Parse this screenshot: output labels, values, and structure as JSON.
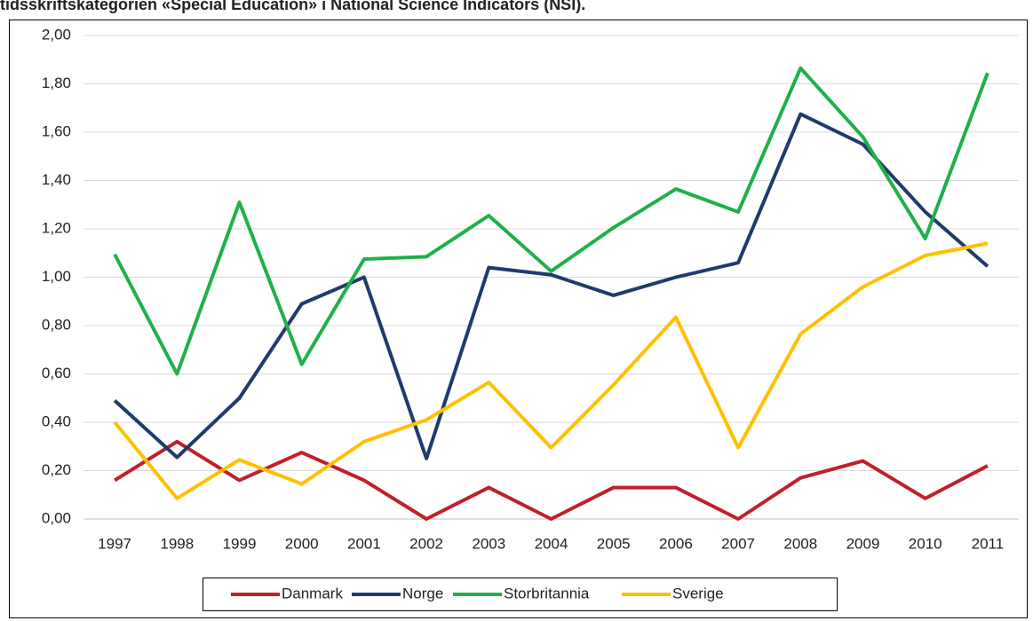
{
  "chart_data": {
    "type": "line",
    "title": "tidsskriftskategorien «Special Education» i National Science Indicators (NSI).",
    "categories": [
      "1997",
      "1998",
      "1999",
      "2000",
      "2001",
      "2002",
      "2003",
      "2004",
      "2005",
      "2006",
      "2007",
      "2008",
      "2009",
      "2010",
      "2011"
    ],
    "series": [
      {
        "name": "Danmark",
        "color": "#c0202a",
        "values": [
          0.16,
          0.32,
          0.16,
          0.275,
          0.16,
          0.0,
          0.13,
          0.0,
          0.13,
          0.13,
          0.0,
          0.17,
          0.24,
          0.085,
          0.22
        ]
      },
      {
        "name": "Norge",
        "color": "#1f3b6c",
        "values": [
          0.49,
          0.255,
          0.5,
          0.89,
          1.0,
          0.25,
          1.04,
          1.01,
          0.925,
          1.0,
          1.06,
          1.675,
          1.55,
          1.27,
          1.045
        ]
      },
      {
        "name": "Storbritannia",
        "color": "#1fb04a",
        "values": [
          1.095,
          0.6,
          1.31,
          0.64,
          1.075,
          1.085,
          1.255,
          1.025,
          1.205,
          1.365,
          1.27,
          1.865,
          1.58,
          1.16,
          1.845
        ]
      },
      {
        "name": "Sverige",
        "color": "#ffc000",
        "values": [
          0.4,
          0.085,
          0.245,
          0.145,
          0.32,
          0.41,
          0.565,
          0.295,
          0.555,
          0.835,
          0.295,
          0.765,
          0.96,
          1.09,
          1.14
        ]
      }
    ],
    "ylim": [
      0,
      2
    ],
    "yticks": [
      {
        "value": 0,
        "label": "0,00"
      },
      {
        "value": 0.2,
        "label": "0,20"
      },
      {
        "value": 0.4,
        "label": "0,40"
      },
      {
        "value": 0.6,
        "label": "0,60"
      },
      {
        "value": 0.8,
        "label": "0,80"
      },
      {
        "value": 1.0,
        "label": "1,00"
      },
      {
        "value": 1.2,
        "label": "1,20"
      },
      {
        "value": 1.4,
        "label": "1,40"
      },
      {
        "value": 1.6,
        "label": "1,60"
      },
      {
        "value": 1.8,
        "label": "1,80"
      },
      {
        "value": 2.0,
        "label": "2,00"
      }
    ],
    "grid": true,
    "legend": "bottom"
  }
}
